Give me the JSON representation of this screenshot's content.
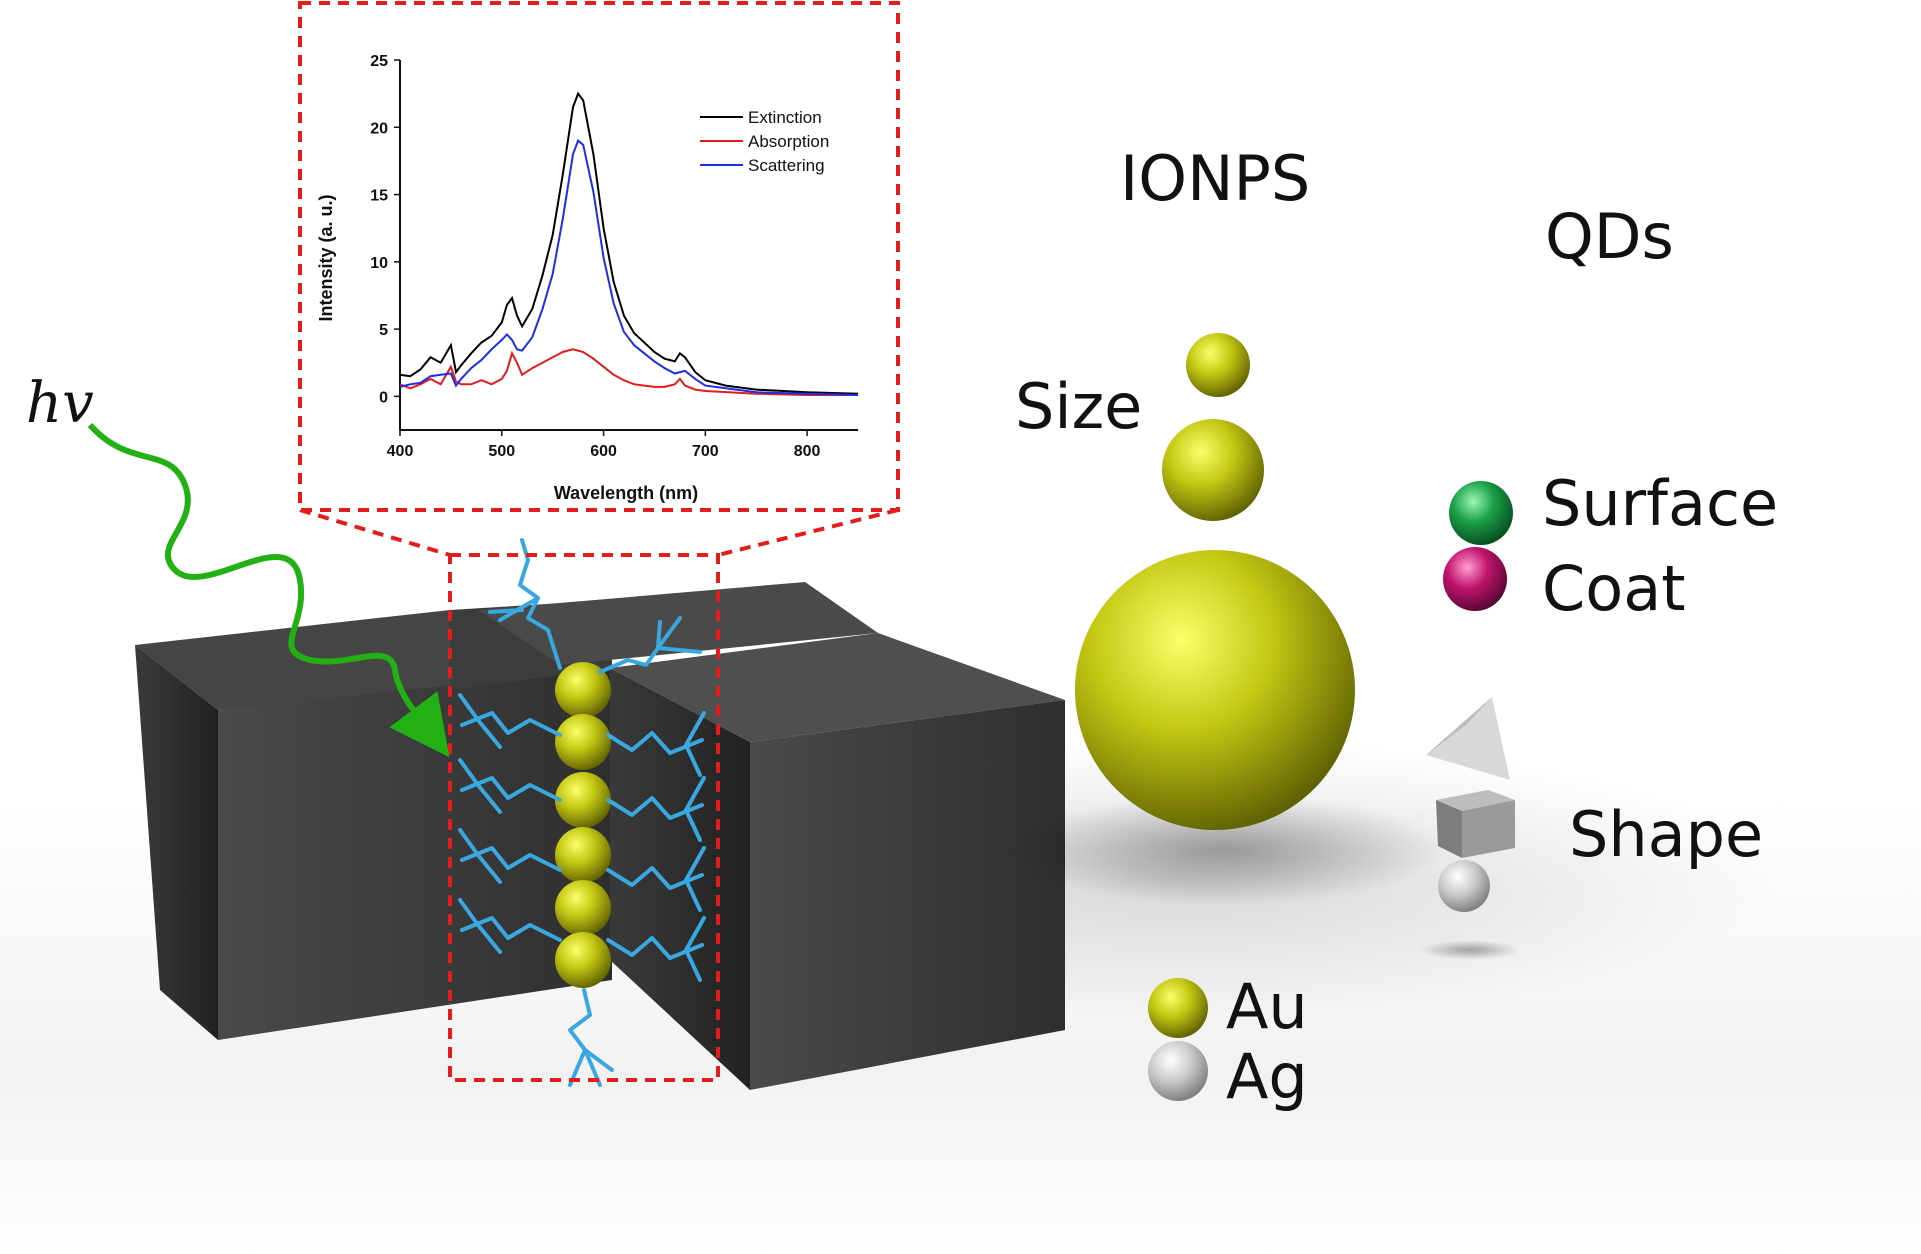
{
  "labels": {
    "hv": "hv",
    "ionps": "IONPS",
    "qds": "QDs",
    "size": "Size",
    "surface": "Surface",
    "coat": "Coat",
    "shape": "Shape",
    "au": "Au",
    "ag": "Ag"
  },
  "colors": {
    "gold_sphere": "#b5b810",
    "silver_sphere": "#c8c8c8",
    "surface_sphere": "#1aa048",
    "coat_sphere": "#c0146e",
    "block": "#3a3a3a",
    "ligand": "#3aa8e0",
    "arrow": "#22b014",
    "inset_border": "#e31c1c"
  },
  "chart_data": {
    "type": "line",
    "title": "",
    "xlabel": "Wavelength (nm)",
    "ylabel": "Intensity (a. u.)",
    "xlim": [
      400,
      850
    ],
    "ylim": [
      -2.5,
      25
    ],
    "xticks": [
      400,
      500,
      600,
      700,
      800
    ],
    "yticks": [
      0,
      5,
      10,
      15,
      20,
      25
    ],
    "legend_position": "top-right",
    "series": [
      {
        "name": "Extinction",
        "color": "#000000",
        "points": [
          [
            400,
            1.6
          ],
          [
            410,
            1.5
          ],
          [
            420,
            2.0
          ],
          [
            430,
            2.9
          ],
          [
            440,
            2.5
          ],
          [
            450,
            3.8
          ],
          [
            455,
            1.8
          ],
          [
            460,
            2.3
          ],
          [
            470,
            3.2
          ],
          [
            480,
            4.0
          ],
          [
            490,
            4.5
          ],
          [
            500,
            5.5
          ],
          [
            505,
            6.8
          ],
          [
            510,
            7.3
          ],
          [
            515,
            6.0
          ],
          [
            520,
            5.2
          ],
          [
            530,
            6.5
          ],
          [
            540,
            9.0
          ],
          [
            550,
            12.0
          ],
          [
            560,
            16.5
          ],
          [
            570,
            21.5
          ],
          [
            575,
            22.5
          ],
          [
            580,
            22.0
          ],
          [
            590,
            18.0
          ],
          [
            600,
            12.5
          ],
          [
            610,
            8.5
          ],
          [
            620,
            6.0
          ],
          [
            630,
            4.7
          ],
          [
            640,
            4.0
          ],
          [
            650,
            3.3
          ],
          [
            660,
            2.8
          ],
          [
            670,
            2.6
          ],
          [
            675,
            3.2
          ],
          [
            680,
            2.9
          ],
          [
            690,
            1.8
          ],
          [
            700,
            1.2
          ],
          [
            720,
            0.8
          ],
          [
            750,
            0.5
          ],
          [
            800,
            0.3
          ],
          [
            850,
            0.2
          ]
        ]
      },
      {
        "name": "Absorption",
        "color": "#e31c1c",
        "points": [
          [
            400,
            0.9
          ],
          [
            410,
            0.6
          ],
          [
            420,
            0.9
          ],
          [
            430,
            1.3
          ],
          [
            440,
            0.9
          ],
          [
            450,
            2.2
          ],
          [
            455,
            1.1
          ],
          [
            460,
            0.9
          ],
          [
            470,
            0.9
          ],
          [
            480,
            1.2
          ],
          [
            490,
            0.9
          ],
          [
            500,
            1.3
          ],
          [
            505,
            1.9
          ],
          [
            510,
            3.2
          ],
          [
            515,
            2.5
          ],
          [
            520,
            1.6
          ],
          [
            530,
            2.1
          ],
          [
            540,
            2.5
          ],
          [
            550,
            2.9
          ],
          [
            560,
            3.3
          ],
          [
            570,
            3.5
          ],
          [
            580,
            3.3
          ],
          [
            590,
            2.8
          ],
          [
            600,
            2.2
          ],
          [
            610,
            1.6
          ],
          [
            620,
            1.2
          ],
          [
            630,
            0.9
          ],
          [
            640,
            0.8
          ],
          [
            650,
            0.7
          ],
          [
            660,
            0.7
          ],
          [
            670,
            0.9
          ],
          [
            675,
            1.3
          ],
          [
            680,
            0.8
          ],
          [
            690,
            0.5
          ],
          [
            700,
            0.4
          ],
          [
            750,
            0.2
          ],
          [
            800,
            0.1
          ],
          [
            850,
            0.1
          ]
        ]
      },
      {
        "name": "Scattering",
        "color": "#1c2fe3",
        "points": [
          [
            400,
            0.7
          ],
          [
            410,
            0.9
          ],
          [
            420,
            1.0
          ],
          [
            430,
            1.5
          ],
          [
            440,
            1.6
          ],
          [
            450,
            1.7
          ],
          [
            455,
            0.8
          ],
          [
            460,
            1.3
          ],
          [
            470,
            2.1
          ],
          [
            480,
            2.7
          ],
          [
            490,
            3.5
          ],
          [
            500,
            4.2
          ],
          [
            505,
            4.6
          ],
          [
            510,
            4.2
          ],
          [
            515,
            3.5
          ],
          [
            520,
            3.4
          ],
          [
            530,
            4.4
          ],
          [
            540,
            6.5
          ],
          [
            550,
            9.1
          ],
          [
            560,
            13.2
          ],
          [
            570,
            18.0
          ],
          [
            575,
            19.0
          ],
          [
            580,
            18.7
          ],
          [
            590,
            15.2
          ],
          [
            600,
            10.3
          ],
          [
            610,
            6.9
          ],
          [
            620,
            4.8
          ],
          [
            630,
            3.8
          ],
          [
            640,
            3.2
          ],
          [
            650,
            2.6
          ],
          [
            660,
            2.1
          ],
          [
            670,
            1.7
          ],
          [
            675,
            1.8
          ],
          [
            680,
            1.9
          ],
          [
            690,
            1.3
          ],
          [
            700,
            0.8
          ],
          [
            720,
            0.6
          ],
          [
            750,
            0.3
          ],
          [
            800,
            0.2
          ],
          [
            850,
            0.1
          ]
        ]
      }
    ]
  }
}
